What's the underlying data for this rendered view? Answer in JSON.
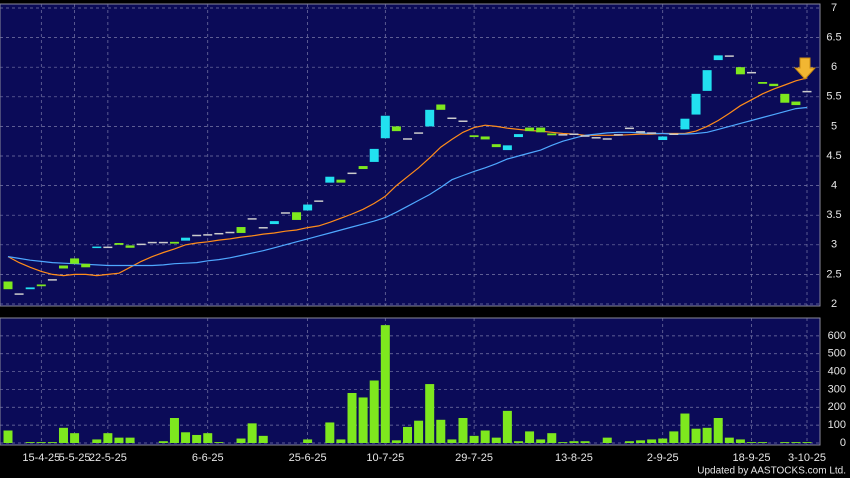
{
  "chart_data": {
    "type": "candlestick",
    "categories": [
      null,
      null,
      null,
      "15-4-25",
      null,
      null,
      "5-5-25",
      null,
      null,
      "22-5-25",
      null,
      null,
      null,
      null,
      null,
      null,
      null,
      null,
      "6-6-25",
      null,
      null,
      null,
      null,
      null,
      null,
      null,
      null,
      "25-6-25",
      null,
      null,
      null,
      null,
      null,
      null,
      "10-7-25",
      null,
      null,
      null,
      null,
      null,
      null,
      null,
      "29-7-25",
      null,
      null,
      null,
      null,
      null,
      null,
      null,
      null,
      "13-8-25",
      null,
      null,
      null,
      null,
      null,
      null,
      null,
      "2-9-25",
      null,
      null,
      null,
      null,
      null,
      null,
      null,
      "18-9-25",
      null,
      null,
      null,
      null,
      "3-10-25"
    ],
    "open": [
      2.38,
      2.18,
      2.25,
      2.33,
      2.42,
      2.65,
      2.77,
      2.68,
      2.95,
      2.97,
      3.03,
      2.99,
      3.02,
      3.05,
      3.05,
      3.05,
      3.07,
      3.17,
      3.18,
      3.2,
      3.22,
      3.3,
      3.45,
      3.3,
      3.35,
      3.55,
      3.55,
      3.58,
      3.75,
      4.05,
      4.1,
      4.22,
      4.33,
      4.4,
      4.8,
      5.0,
      4.8,
      4.9,
      5.0,
      5.37,
      5.15,
      5.1,
      4.85,
      4.83,
      4.7,
      4.6,
      4.82,
      4.98,
      4.98,
      4.88,
      4.87,
      4.88,
      4.85,
      4.82,
      4.8,
      4.87,
      4.98,
      4.92,
      4.9,
      4.77,
      4.88,
      4.95,
      5.2,
      5.6,
      6.12,
      6.2,
      6.0,
      5.92,
      5.75,
      5.72,
      5.55,
      5.42,
      5.6
    ],
    "close": [
      2.25,
      2.18,
      2.28,
      2.3,
      2.42,
      2.6,
      2.68,
      2.62,
      2.97,
      2.97,
      3.0,
      2.95,
      3.02,
      3.05,
      3.05,
      3.02,
      3.12,
      3.17,
      3.18,
      3.2,
      3.22,
      3.2,
      3.45,
      3.3,
      3.4,
      3.55,
      3.42,
      3.68,
      3.75,
      4.15,
      4.05,
      4.22,
      4.28,
      4.62,
      5.18,
      4.92,
      4.8,
      4.9,
      5.28,
      5.28,
      5.15,
      5.1,
      4.82,
      4.78,
      4.65,
      4.68,
      4.87,
      4.92,
      4.9,
      4.85,
      4.87,
      4.88,
      4.85,
      4.82,
      4.8,
      4.87,
      4.98,
      4.92,
      4.9,
      4.83,
      4.88,
      5.13,
      5.55,
      5.95,
      6.2,
      6.2,
      5.88,
      5.92,
      5.72,
      5.68,
      5.4,
      5.36,
      5.6
    ],
    "up_color": "#22e0f0",
    "down_color": "#7ee81e",
    "flat_color": "#cccccc",
    "ylim": [
      2,
      7
    ],
    "yticks": [
      2,
      2.5,
      3,
      3.5,
      4,
      4.5,
      5,
      5.5,
      6,
      6.5,
      7
    ],
    "grid": true,
    "series": [
      {
        "color": "#ff8c1a",
        "values": [
          2.8,
          2.7,
          2.62,
          2.55,
          2.5,
          2.48,
          2.5,
          2.5,
          2.48,
          2.5,
          2.52,
          2.62,
          2.72,
          2.8,
          2.87,
          2.93,
          3.0,
          3.03,
          3.05,
          3.08,
          3.1,
          3.13,
          3.15,
          3.18,
          3.2,
          3.23,
          3.25,
          3.29,
          3.32,
          3.38,
          3.45,
          3.52,
          3.6,
          3.7,
          3.82,
          4.0,
          4.15,
          4.3,
          4.47,
          4.65,
          4.78,
          4.9,
          4.98,
          5.02,
          5.0,
          4.97,
          4.95,
          4.93,
          4.92,
          4.9,
          4.88,
          4.87,
          4.85,
          4.85,
          4.85,
          4.85,
          4.86,
          4.87,
          4.87,
          4.88,
          4.88,
          4.88,
          4.92,
          5.0,
          5.1,
          5.22,
          5.35,
          5.45,
          5.55,
          5.63,
          5.7,
          5.77,
          5.82
        ]
      },
      {
        "color": "#4fa8ff",
        "values": [
          2.8,
          2.77,
          2.74,
          2.72,
          2.7,
          2.69,
          2.68,
          2.67,
          2.66,
          2.65,
          2.65,
          2.65,
          2.65,
          2.65,
          2.66,
          2.68,
          2.69,
          2.7,
          2.73,
          2.75,
          2.78,
          2.82,
          2.86,
          2.9,
          2.95,
          3.0,
          3.05,
          3.1,
          3.15,
          3.2,
          3.25,
          3.3,
          3.35,
          3.4,
          3.46,
          3.55,
          3.65,
          3.75,
          3.85,
          3.97,
          4.1,
          4.17,
          4.24,
          4.3,
          4.37,
          4.45,
          4.5,
          4.55,
          4.6,
          4.68,
          4.75,
          4.8,
          4.85,
          4.87,
          4.89,
          4.9,
          4.9,
          4.89,
          4.88,
          4.88,
          4.87,
          4.87,
          4.88,
          4.9,
          4.95,
          5.0,
          5.05,
          5.1,
          5.15,
          5.2,
          5.25,
          5.3,
          5.32
        ]
      }
    ],
    "volume": {
      "color": "#7ee81e",
      "values": [
        70,
        0,
        5,
        5,
        5,
        85,
        55,
        0,
        20,
        55,
        30,
        30,
        0,
        0,
        10,
        140,
        60,
        45,
        55,
        5,
        0,
        25,
        110,
        40,
        0,
        0,
        0,
        20,
        0,
        115,
        20,
        280,
        255,
        350,
        660,
        15,
        90,
        125,
        330,
        130,
        20,
        140,
        40,
        70,
        30,
        180,
        10,
        65,
        20,
        55,
        5,
        10,
        10,
        0,
        30,
        0,
        10,
        15,
        20,
        25,
        65,
        165,
        80,
        85,
        140,
        30,
        20,
        5,
        5,
        0,
        5,
        5,
        5
      ],
      "ylim": [
        0,
        700
      ],
      "yticks": [
        0,
        100,
        200,
        300,
        400,
        500,
        600
      ]
    },
    "source": "Updated by AASTOCKS.com Ltd."
  }
}
